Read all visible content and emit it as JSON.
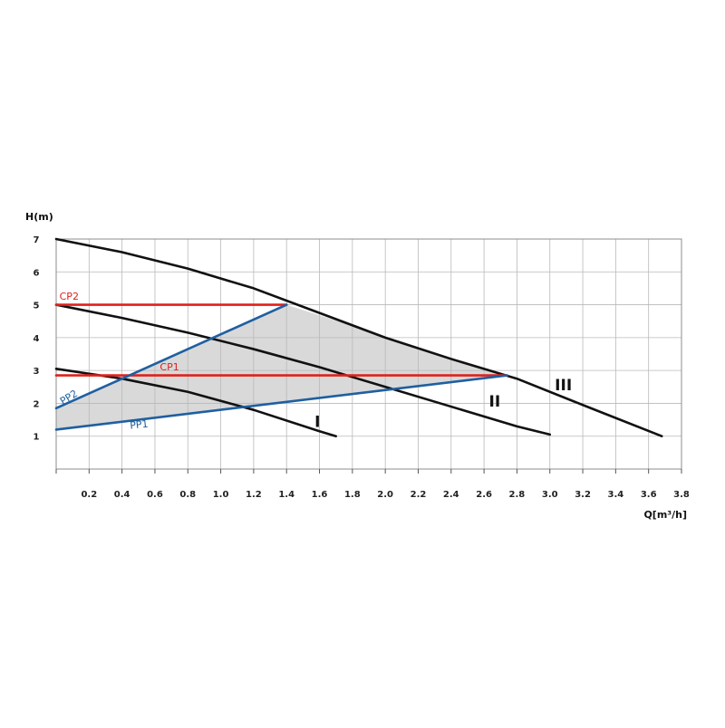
{
  "chart_data": {
    "type": "line",
    "title": "",
    "xlabel": "Q[m³/h]",
    "ylabel": "H(m)",
    "xlim": [
      0,
      3.8
    ],
    "ylim": [
      0,
      7
    ],
    "x_ticks": [
      0.2,
      0.4,
      0.6,
      0.8,
      1.0,
      1.2,
      1.4,
      1.6,
      1.8,
      2.0,
      2.2,
      2.4,
      2.6,
      2.8,
      3.0,
      3.2,
      3.4,
      3.6,
      3.8
    ],
    "x_tick_labels": [
      "0.2",
      "0.4",
      "0.6",
      "0.8",
      "1.0",
      "1.2",
      "1.4",
      "1.6",
      "1.8",
      "2.0",
      "2.2",
      "2.4",
      "2.6",
      "2.8",
      "3.0",
      "3.2",
      "3.4",
      "3.6",
      "3.8"
    ],
    "y_ticks": [
      1,
      2,
      3,
      4,
      5,
      6,
      7
    ],
    "y_tick_labels": [
      "1",
      "2",
      "3",
      "4",
      "5",
      "6",
      "7"
    ],
    "grid": true,
    "operating_area": {
      "fill": "#d9d9d9",
      "points": [
        [
          0,
          1.2
        ],
        [
          0,
          1.85
        ],
        [
          1.4,
          5.0
        ],
        [
          2.74,
          2.85
        ],
        [
          1.1,
          1.88
        ]
      ]
    },
    "series": [
      {
        "name": "I",
        "label": "I",
        "color": "#111111",
        "x": [
          0,
          0.4,
          0.8,
          1.2,
          1.6,
          1.7
        ],
        "y": [
          3.05,
          2.75,
          2.35,
          1.8,
          1.15,
          1.0
        ]
      },
      {
        "name": "II",
        "label": "II",
        "color": "#111111",
        "x": [
          0,
          0.4,
          0.8,
          1.2,
          1.6,
          2.0,
          2.4,
          2.8,
          3.0
        ],
        "y": [
          5.0,
          4.6,
          4.15,
          3.65,
          3.1,
          2.5,
          1.9,
          1.3,
          1.05
        ]
      },
      {
        "name": "III",
        "label": "III",
        "color": "#111111",
        "x": [
          0,
          0.4,
          0.8,
          1.2,
          1.6,
          2.0,
          2.4,
          2.8,
          3.2,
          3.68
        ],
        "y": [
          7.0,
          6.6,
          6.1,
          5.5,
          4.75,
          4.0,
          3.35,
          2.75,
          1.95,
          1.0
        ]
      },
      {
        "name": "CP2",
        "label": "CP2",
        "color": "#e0201b",
        "x": [
          0,
          1.4
        ],
        "y": [
          5.0,
          5.0
        ]
      },
      {
        "name": "CP1",
        "label": "CP1",
        "color": "#e0201b",
        "x": [
          0,
          2.74
        ],
        "y": [
          2.85,
          2.85
        ]
      },
      {
        "name": "PP2",
        "label": "PP2",
        "color": "#1f5fa0",
        "x": [
          0,
          1.4
        ],
        "y": [
          1.85,
          5.0
        ]
      },
      {
        "name": "PP1",
        "label": "PP1",
        "color": "#1f5fa0",
        "x": [
          0,
          2.74
        ],
        "y": [
          1.2,
          2.85
        ]
      }
    ]
  }
}
